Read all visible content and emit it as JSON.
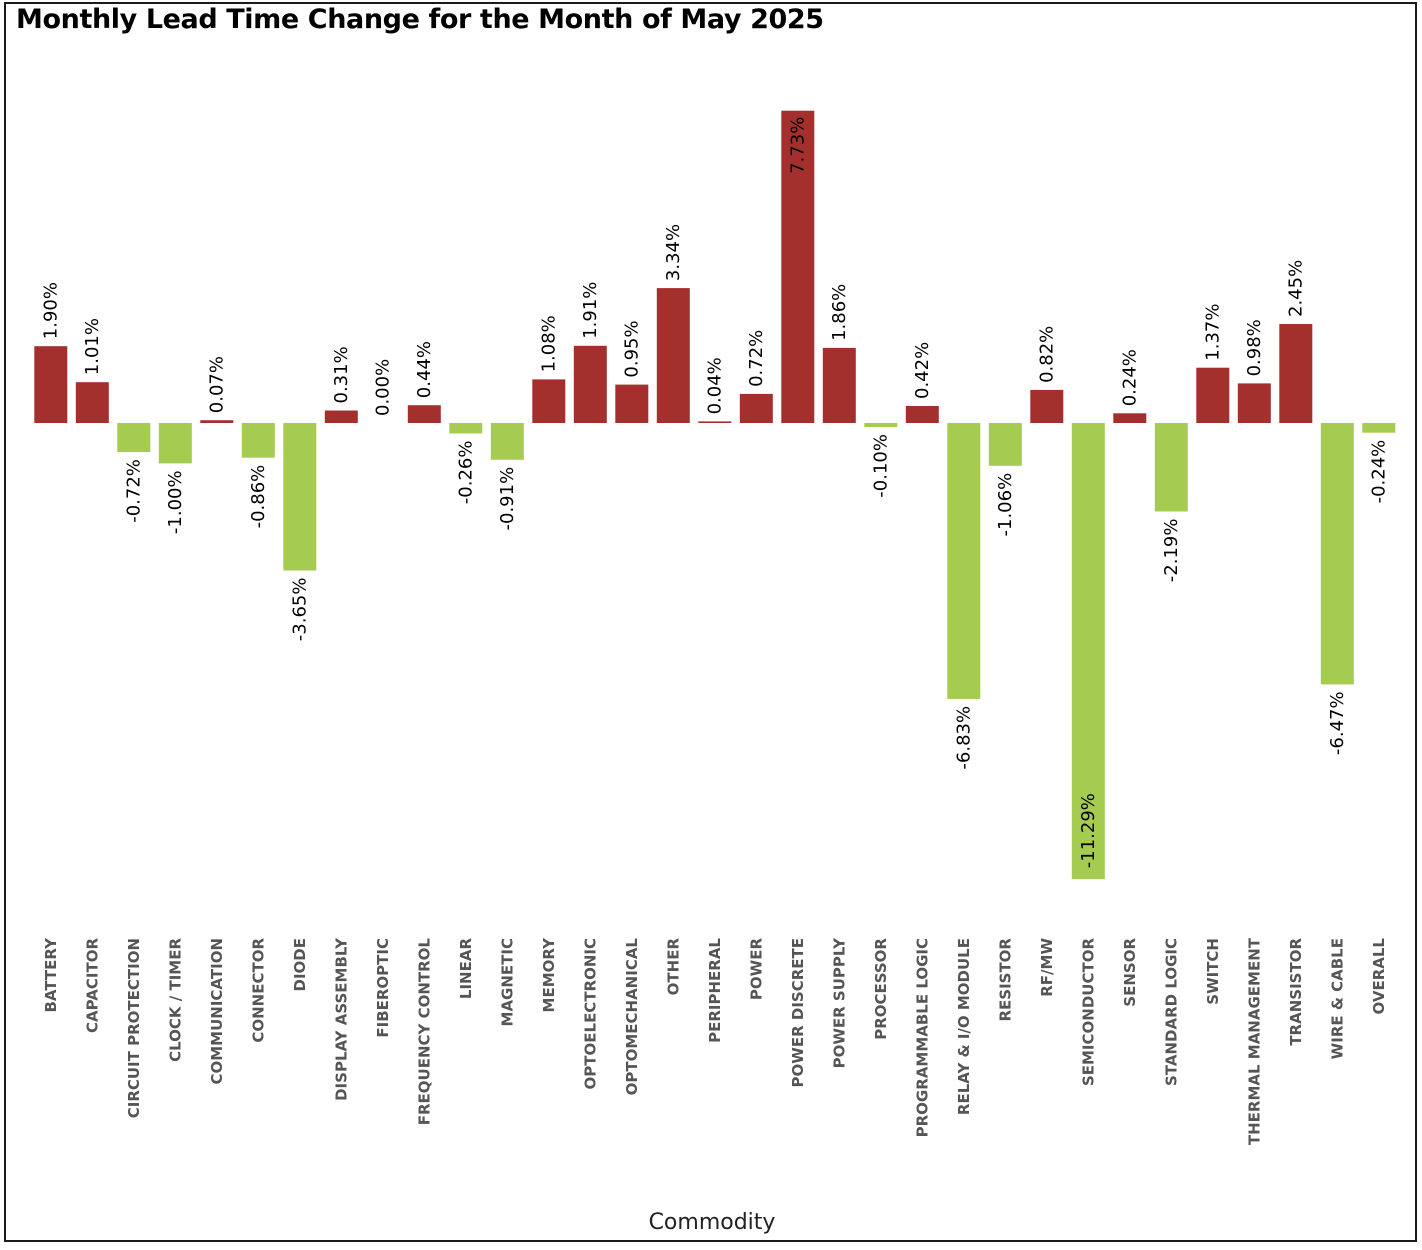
{
  "chart_data": {
    "type": "bar",
    "title": "Monthly Lead Time Change for the Month of May 2025",
    "xlabel": "Commodity",
    "ylabel": "",
    "categories": [
      "BATTERY",
      "CAPACITOR",
      "CIRCUIT PROTECTION",
      "CLOCK / TIMER",
      "COMMUNICATION",
      "CONNECTOR",
      "DIODE",
      "DISPLAY ASSEMBLY",
      "FIBEROPTIC",
      "FREQUENCY CONTROL",
      "LINEAR",
      "MAGNETIC",
      "MEMORY",
      "OPTOELECTRONIC",
      "OPTOMECHANICAL",
      "OTHER",
      "PERIPHERAL",
      "POWER",
      "POWER DISCRETE",
      "POWER SUPPLY",
      "PROCESSOR",
      "PROGRAMMABLE LOGIC",
      "RELAY & I/O MODULE",
      "RESISTOR",
      "RF/MW",
      "SEMICONDUCTOR",
      "SENSOR",
      "STANDARD LOGIC",
      "SWITCH",
      "THERMAL MANAGEMENT",
      "TRANSISTOR",
      "WIRE & CABLE",
      "OVERALL"
    ],
    "values": [
      1.9,
      1.01,
      -0.72,
      -1.0,
      0.07,
      -0.86,
      -3.65,
      0.31,
      0.0,
      0.44,
      -0.26,
      -0.91,
      1.08,
      1.91,
      0.95,
      3.34,
      0.04,
      0.72,
      7.73,
      1.86,
      -0.1,
      0.42,
      -6.83,
      -1.06,
      0.82,
      -11.29,
      0.24,
      -2.19,
      1.37,
      0.98,
      2.45,
      -6.47,
      -0.24
    ],
    "value_labels": [
      "1.90%",
      "1.01%",
      "-0.72%",
      "-1.00%",
      "0.07%",
      "-0.86%",
      "-3.65%",
      "0.31%",
      "0.00%",
      "0.44%",
      "-0.26%",
      "-0.91%",
      "1.08%",
      "1.91%",
      "0.95%",
      "3.34%",
      "0.04%",
      "0.72%",
      "7.73%",
      "1.86%",
      "-0.10%",
      "0.42%",
      "-6.83%",
      "-1.06%",
      "0.82%",
      "-11.29%",
      "0.24%",
      "-2.19%",
      "1.37%",
      "0.98%",
      "2.45%",
      "-6.47%",
      "-0.24%"
    ],
    "value_unit": "%",
    "ylim": [
      -11.29,
      7.73
    ],
    "grid": false,
    "legend": "none",
    "colors": {
      "positive": "#A4302D",
      "negative": "#A5CC50"
    }
  }
}
